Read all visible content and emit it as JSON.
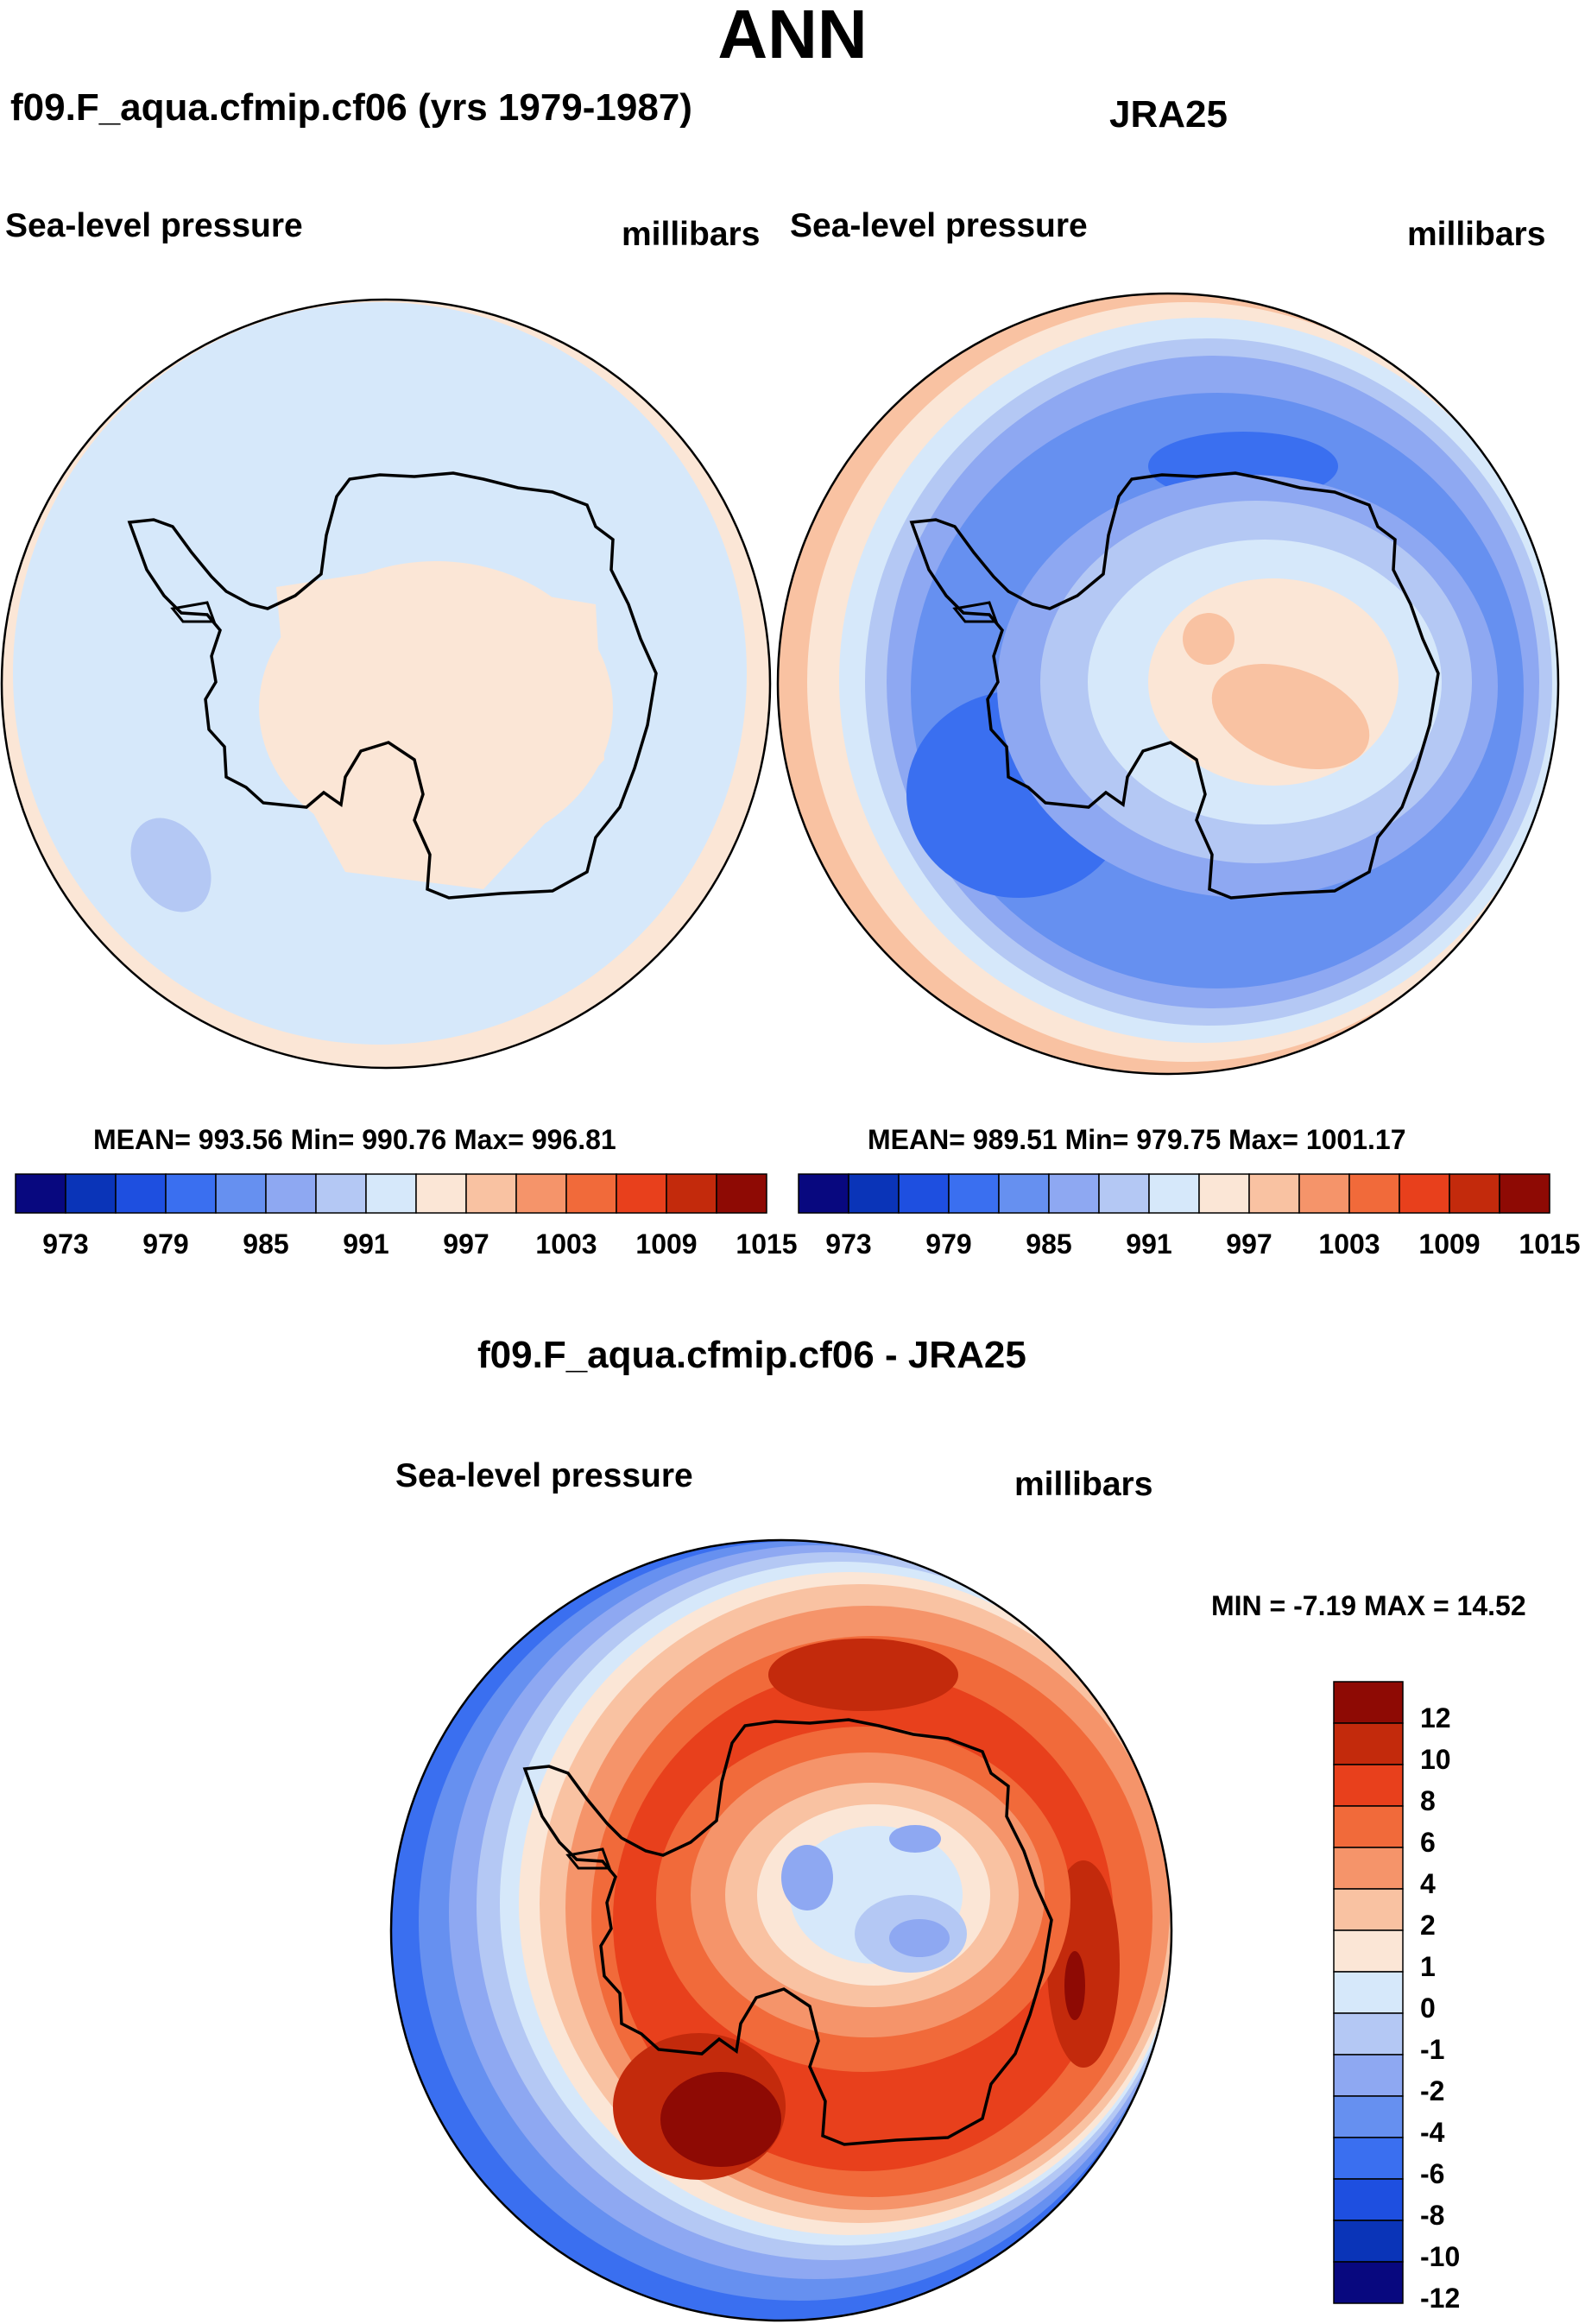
{
  "figure_title": "ANN",
  "panels": [
    {
      "title": "f09.F_aqua.cfmip.cf06 (yrs 1979-1987)",
      "left_label": "Sea-level pressure",
      "right_label": "millibars",
      "stats": "MEAN= 993.56  Min= 990.76  Max= 996.81"
    },
    {
      "title": "JRA25",
      "left_label": "Sea-level pressure",
      "right_label": "millibars",
      "stats": "MEAN= 989.51  Min= 979.75  Max= 1001.17"
    },
    {
      "title": "f09.F_aqua.cfmip.cf06 - JRA25",
      "left_label": "Sea-level pressure",
      "right_label": "millibars",
      "stats": "MIN =  -7.19 MAX =  14.52"
    }
  ],
  "slp_colorbar": {
    "ticks": [
      "973",
      "979",
      "985",
      "991",
      "997",
      "1003",
      "1009",
      "1015"
    ],
    "colors": [
      "#08087f",
      "#0a34b8",
      "#1e4fe0",
      "#3a6ff0",
      "#6690f0",
      "#8ea8f2",
      "#b4c8f4",
      "#d6e8fa",
      "#fbe6d6",
      "#f9c2a2",
      "#f5946a",
      "#f16a3a",
      "#e8401c",
      "#c32a0c",
      "#8e0a04"
    ]
  },
  "diff_colorbar": {
    "ticks": [
      "12",
      "10",
      "8",
      "6",
      "4",
      "2",
      "1",
      "0",
      "-1",
      "-2",
      "-4",
      "-6",
      "-8",
      "-10",
      "-12"
    ],
    "colors": [
      "#8e0a04",
      "#c32a0c",
      "#e8401c",
      "#f16a3a",
      "#f5946a",
      "#f9c2a2",
      "#fbe6d6",
      "#d6e8fa",
      "#b4c8f4",
      "#8ea8f2",
      "#6690f0",
      "#3a6ff0",
      "#1e4fe0",
      "#0a34b8",
      "#08087f"
    ]
  }
}
